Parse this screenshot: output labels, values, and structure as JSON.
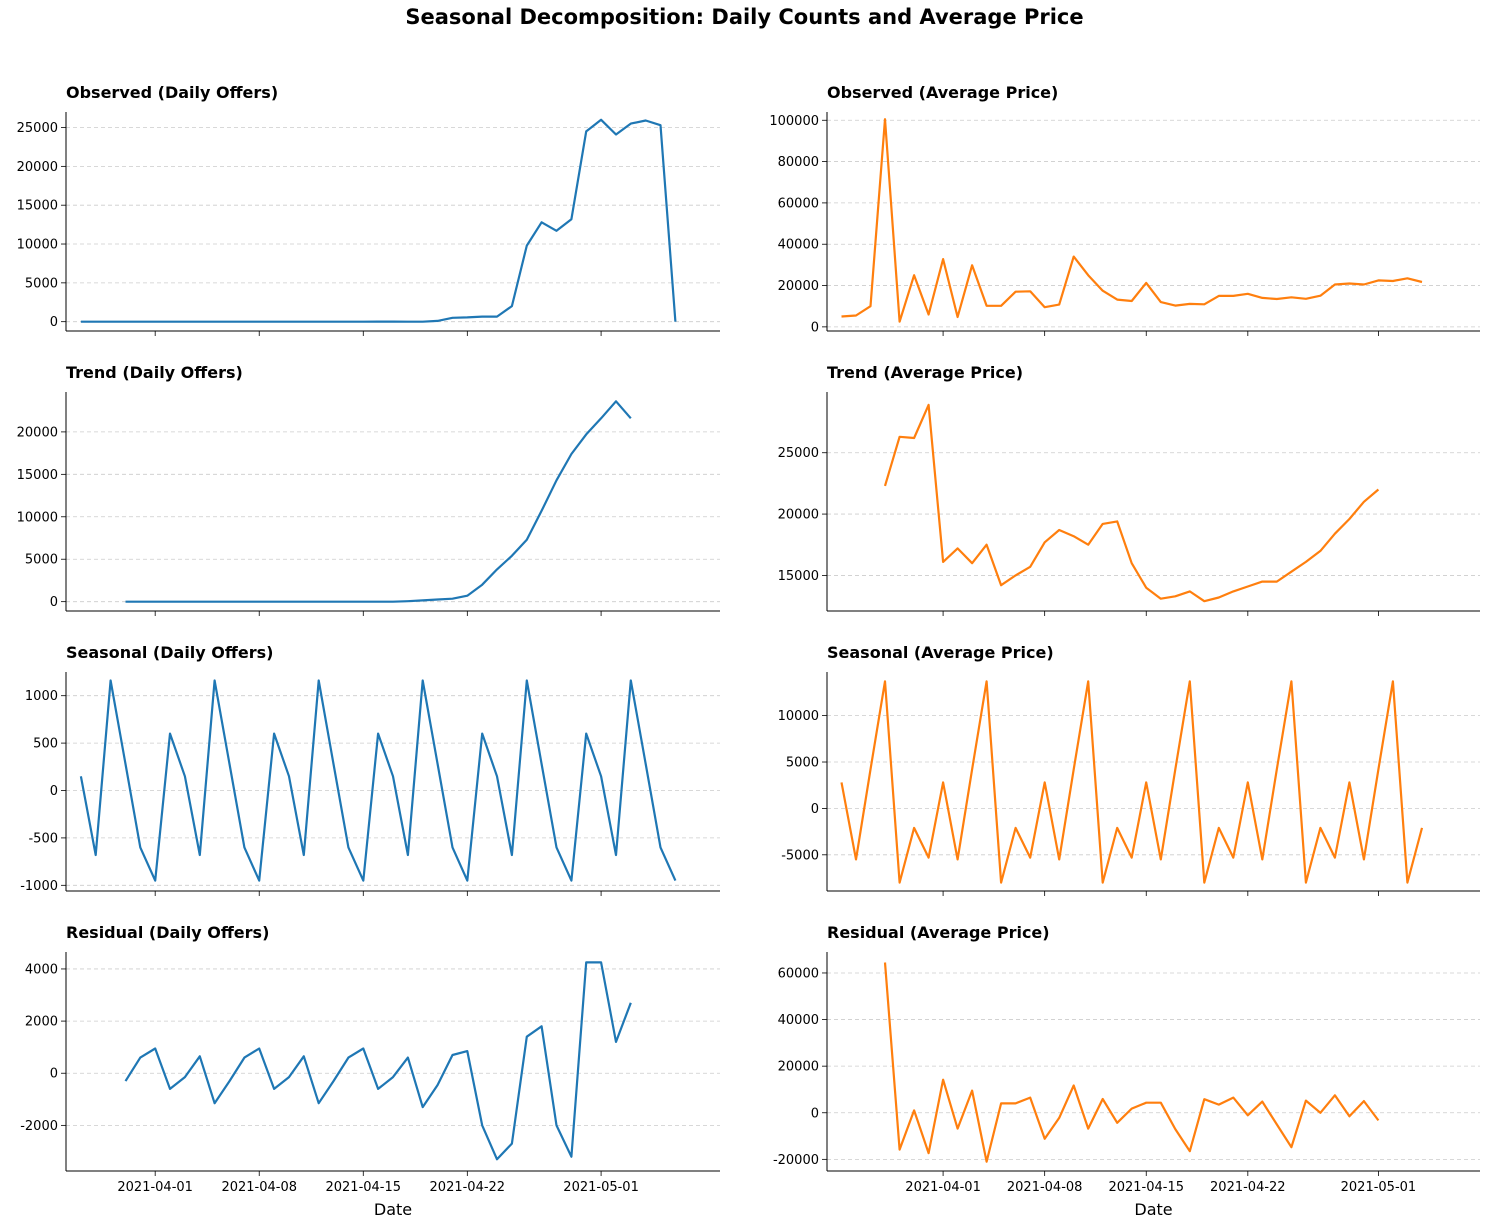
{
  "title": "Seasonal Decomposition: Daily Counts and Average Price",
  "xlabel": "Date",
  "colors": {
    "counts": "#1f77b4",
    "price": "#ff7f0e",
    "grid": "#cccccc",
    "axis": "#000000"
  },
  "x_ticks": [
    "2021-04-01",
    "2021-04-08",
    "2021-04-15",
    "2021-04-22",
    "2021-05-01"
  ],
  "chart_data": [
    {
      "type": "line",
      "title": "Observed (Daily Offers)",
      "color": "#1f77b4",
      "x_start": "2021-03-27",
      "yticks": [
        0,
        5000,
        10000,
        15000,
        20000,
        25000
      ],
      "ylim": [
        -1200,
        27000
      ],
      "values": [
        0,
        0,
        0,
        0,
        0,
        0,
        0,
        0,
        0,
        0,
        0,
        0,
        0,
        0,
        0,
        0,
        0,
        0,
        0,
        0,
        10,
        10,
        0,
        0,
        100,
        500,
        550,
        650,
        650,
        2000,
        9800,
        12800,
        11700,
        13200,
        24500,
        26000,
        24100,
        25500,
        25900,
        25300,
        0
      ]
    },
    {
      "type": "line",
      "title": "Observed (Average Price)",
      "color": "#ff7f0e",
      "x_start": "2021-03-25",
      "yticks": [
        0,
        20000,
        40000,
        60000,
        80000,
        100000
      ],
      "ylim": [
        -2000,
        104000
      ],
      "values": [
        5000,
        5500,
        10000,
        100500,
        2500,
        25000,
        6000,
        32800,
        4800,
        29800,
        10200,
        10200,
        17000,
        17200,
        9500,
        10800,
        34000,
        25000,
        17500,
        13200,
        12500,
        21300,
        12000,
        10300,
        11100,
        10900,
        15000,
        15000,
        16000,
        14000,
        13500,
        14300,
        13600,
        15100,
        20500,
        21000,
        20500,
        22500,
        22200,
        23500,
        21700
      ]
    },
    {
      "type": "line",
      "title": "Trend (Daily Offers)",
      "color": "#1f77b4",
      "x_start": "2021-03-27",
      "yticks": [
        0,
        5000,
        10000,
        15000,
        20000
      ],
      "ylim": [
        -1100,
        24700
      ],
      "values": [
        null,
        null,
        null,
        0,
        0,
        0,
        0,
        0,
        0,
        0,
        0,
        0,
        0,
        0,
        0,
        0,
        0,
        0,
        0,
        0,
        0,
        0,
        50,
        150,
        250,
        350,
        700,
        2000,
        3800,
        5400,
        7300,
        10700,
        14300,
        17400,
        19700,
        21600,
        23600,
        21600,
        null,
        null,
        null
      ]
    },
    {
      "type": "line",
      "title": "Trend (Average Price)",
      "color": "#ff7f0e",
      "x_start": "2021-03-25",
      "yticks": [
        15000,
        20000,
        25000
      ],
      "ylim": [
        12100,
        29950
      ],
      "values": [
        null,
        null,
        null,
        22300,
        26300,
        26200,
        28900,
        16100,
        17200,
        16000,
        17500,
        14200,
        15000,
        15700,
        17700,
        18700,
        18200,
        17500,
        19200,
        19400,
        16000,
        14000,
        13100,
        13300,
        13700,
        12900,
        13200,
        13700,
        14100,
        14500,
        14500,
        15300,
        16100,
        17000,
        18400,
        19600,
        21000,
        22000,
        null,
        null,
        null
      ]
    },
    {
      "type": "line",
      "title": "Seasonal (Daily Offers)",
      "color": "#1f77b4",
      "x_start": "2021-03-27",
      "yticks": [
        -1000,
        -500,
        0,
        500,
        1000
      ],
      "ylim": [
        -1060,
        1250
      ],
      "values": [
        150,
        -680,
        1160,
        280,
        -600,
        -950,
        600,
        150,
        -680,
        1160,
        280,
        -600,
        -950,
        600,
        150,
        -680,
        1160,
        280,
        -600,
        -950,
        600,
        150,
        -680,
        1160,
        280,
        -600,
        -950,
        600,
        150,
        -680,
        1160,
        280,
        -600,
        -950,
        600,
        150,
        -680,
        1160,
        280,
        -600,
        -950
      ]
    },
    {
      "type": "line",
      "title": "Seasonal (Average Price)",
      "color": "#ff7f0e",
      "x_start": "2021-03-25",
      "yticks": [
        -5000,
        0,
        5000,
        10000
      ],
      "ylim": [
        -8900,
        14700
      ],
      "values": [
        2800,
        -5500,
        4200,
        13700,
        -8000,
        -2100,
        -5300,
        2800,
        -5500,
        4200,
        13700,
        -8000,
        -2100,
        -5300,
        2800,
        -5500,
        4200,
        13700,
        -8000,
        -2100,
        -5300,
        2800,
        -5500,
        4200,
        13700,
        -8000,
        -2100,
        -5300,
        2800,
        -5500,
        4200,
        13700,
        -8000,
        -2100,
        -5300,
        2800,
        -5500,
        4200,
        13700,
        -8000,
        -2100
      ]
    },
    {
      "type": "line",
      "title": "Residual (Daily Offers)",
      "color": "#1f77b4",
      "x_start": "2021-03-27",
      "yticks": [
        -2000,
        0,
        2000,
        4000
      ],
      "ylim": [
        -3750,
        4650
      ],
      "values": [
        null,
        null,
        null,
        -300,
        600,
        950,
        -600,
        -150,
        650,
        -1150,
        -300,
        600,
        950,
        -600,
        -150,
        650,
        -1150,
        -300,
        600,
        950,
        -600,
        -150,
        600,
        -1300,
        -450,
        700,
        850,
        -2000,
        -3300,
        -2700,
        1400,
        1800,
        -2000,
        -3200,
        4250,
        4250,
        1200,
        2700,
        null,
        null,
        null
      ]
    },
    {
      "type": "line",
      "title": "Residual (Average Price)",
      "color": "#ff7f0e",
      "x_start": "2021-03-25",
      "yticks": [
        -20000,
        0,
        20000,
        40000,
        60000
      ],
      "ylim": [
        -25000,
        69000
      ],
      "values": [
        null,
        null,
        null,
        64500,
        -15800,
        1000,
        -17300,
        14200,
        -6800,
        9500,
        -21000,
        4000,
        4000,
        6500,
        -11200,
        -2200,
        11700,
        -6800,
        5900,
        -4300,
        1800,
        4300,
        4300,
        -7000,
        -16500,
        5800,
        3500,
        6500,
        -1100,
        4800,
        -5000,
        -14800,
        5200,
        0,
        7500,
        -1500,
        5000,
        -3300,
        null,
        null,
        null
      ]
    }
  ]
}
